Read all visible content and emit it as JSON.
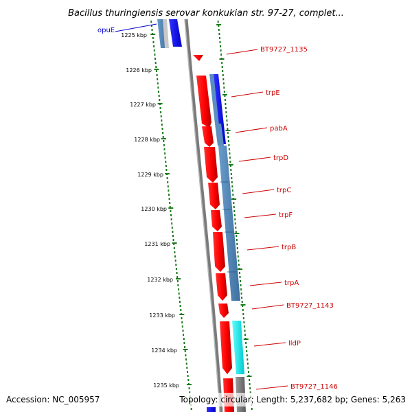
{
  "title": "Bacillus thuringiensis serovar konkukian str. 97-27, complet...",
  "ticks": [
    "1225 kbp",
    "1226 kbp",
    "1227 kbp",
    "1228 kbp",
    "1229 kbp",
    "1230 kbp",
    "1231 kbp",
    "1232 kbp",
    "1233 kbp",
    "1234 kbp",
    "1235 kbp"
  ],
  "genes": [
    {
      "label": "opuE",
      "strand": "minus"
    },
    {
      "label": "BT9727_1135",
      "strand": "plus"
    },
    {
      "label": "trpE",
      "strand": "plus"
    },
    {
      "label": "pabA",
      "strand": "plus"
    },
    {
      "label": "trpD",
      "strand": "plus"
    },
    {
      "label": "trpC",
      "strand": "plus"
    },
    {
      "label": "trpF",
      "strand": "plus"
    },
    {
      "label": "trpB",
      "strand": "plus"
    },
    {
      "label": "trpA",
      "strand": "plus"
    },
    {
      "label": "BT9727_1143",
      "strand": "plus"
    },
    {
      "label": "lldP",
      "strand": "plus"
    },
    {
      "label": "BT9727_1146",
      "strand": "plus"
    }
  ],
  "footer": {
    "accession": "Accession: NC_005957",
    "topology": "Topology: circular; Length: 5,237,682 bp; Genes: 5,263"
  },
  "colors": {
    "cds": "#ff0000",
    "cds_dark": "#b00000",
    "cog_blue": "#0000ff",
    "cog_steel": "#4a7fb5",
    "cog_cyan": "#00e5ee",
    "cog_gray": "#808080",
    "tick_green": "#1a7a1a",
    "backbone": "#7a7a7a"
  }
}
